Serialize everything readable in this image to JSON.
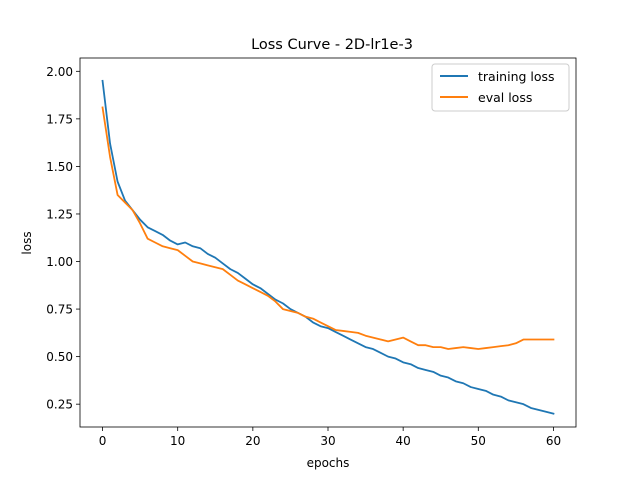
{
  "chart_data": {
    "type": "line",
    "title": "Loss Curve - 2D-lr1e-3",
    "xlabel": "epochs",
    "ylabel": "loss",
    "xlim": [
      -3,
      63
    ],
    "ylim": [
      0.13,
      2.07
    ],
    "x_ticks": [
      0,
      10,
      20,
      30,
      40,
      50,
      60
    ],
    "y_ticks": [
      0.25,
      0.5,
      0.75,
      1.0,
      1.25,
      1.5,
      1.75,
      2.0
    ],
    "x_tick_labels": [
      "0",
      "10",
      "20",
      "30",
      "40",
      "50",
      "60"
    ],
    "y_tick_labels": [
      "0.25",
      "0.50",
      "0.75",
      "1.00",
      "1.25",
      "1.50",
      "1.75",
      "2.00"
    ],
    "grid": false,
    "legend_position": "top-right",
    "series": [
      {
        "name": "training loss",
        "color": "#1f77b4",
        "x": [
          0,
          1,
          2,
          3,
          4,
          5,
          6,
          7,
          8,
          9,
          10,
          11,
          12,
          13,
          14,
          15,
          16,
          17,
          18,
          19,
          20,
          21,
          22,
          23,
          24,
          25,
          26,
          27,
          28,
          29,
          30,
          31,
          32,
          33,
          34,
          35,
          36,
          37,
          38,
          39,
          40,
          41,
          42,
          43,
          44,
          45,
          46,
          47,
          48,
          49,
          50,
          51,
          52,
          53,
          54,
          55,
          56,
          57,
          58,
          59,
          60
        ],
        "values": [
          1.95,
          1.62,
          1.42,
          1.32,
          1.27,
          1.22,
          1.18,
          1.16,
          1.14,
          1.11,
          1.09,
          1.1,
          1.08,
          1.07,
          1.04,
          1.02,
          0.99,
          0.96,
          0.94,
          0.91,
          0.88,
          0.86,
          0.83,
          0.8,
          0.78,
          0.75,
          0.73,
          0.71,
          0.68,
          0.66,
          0.65,
          0.63,
          0.61,
          0.59,
          0.57,
          0.55,
          0.54,
          0.52,
          0.5,
          0.49,
          0.47,
          0.46,
          0.44,
          0.43,
          0.42,
          0.4,
          0.39,
          0.37,
          0.36,
          0.34,
          0.33,
          0.32,
          0.3,
          0.29,
          0.27,
          0.26,
          0.25,
          0.23,
          0.22,
          0.21,
          0.2
        ]
      },
      {
        "name": "eval loss",
        "color": "#ff7f0e",
        "x": [
          0,
          1,
          2,
          3,
          4,
          5,
          6,
          7,
          8,
          9,
          10,
          11,
          12,
          13,
          14,
          15,
          16,
          17,
          18,
          19,
          20,
          21,
          22,
          23,
          24,
          25,
          26,
          27,
          28,
          29,
          30,
          31,
          32,
          33,
          34,
          35,
          36,
          37,
          38,
          39,
          40,
          41,
          42,
          43,
          44,
          45,
          46,
          47,
          48,
          49,
          50,
          51,
          52,
          53,
          54,
          55,
          56,
          57,
          58,
          59,
          60
        ],
        "values": [
          1.81,
          1.55,
          1.35,
          1.31,
          1.27,
          1.2,
          1.12,
          1.1,
          1.08,
          1.07,
          1.06,
          1.03,
          1.0,
          0.99,
          0.98,
          0.97,
          0.96,
          0.93,
          0.9,
          0.88,
          0.86,
          0.84,
          0.82,
          0.79,
          0.75,
          0.74,
          0.73,
          0.71,
          0.7,
          0.68,
          0.66,
          0.64,
          0.635,
          0.63,
          0.625,
          0.61,
          0.6,
          0.59,
          0.58,
          0.59,
          0.6,
          0.58,
          0.56,
          0.56,
          0.55,
          0.55,
          0.54,
          0.545,
          0.55,
          0.545,
          0.54,
          0.545,
          0.55,
          0.555,
          0.56,
          0.57,
          0.59,
          0.59,
          0.59,
          0.59,
          0.59
        ]
      }
    ]
  }
}
